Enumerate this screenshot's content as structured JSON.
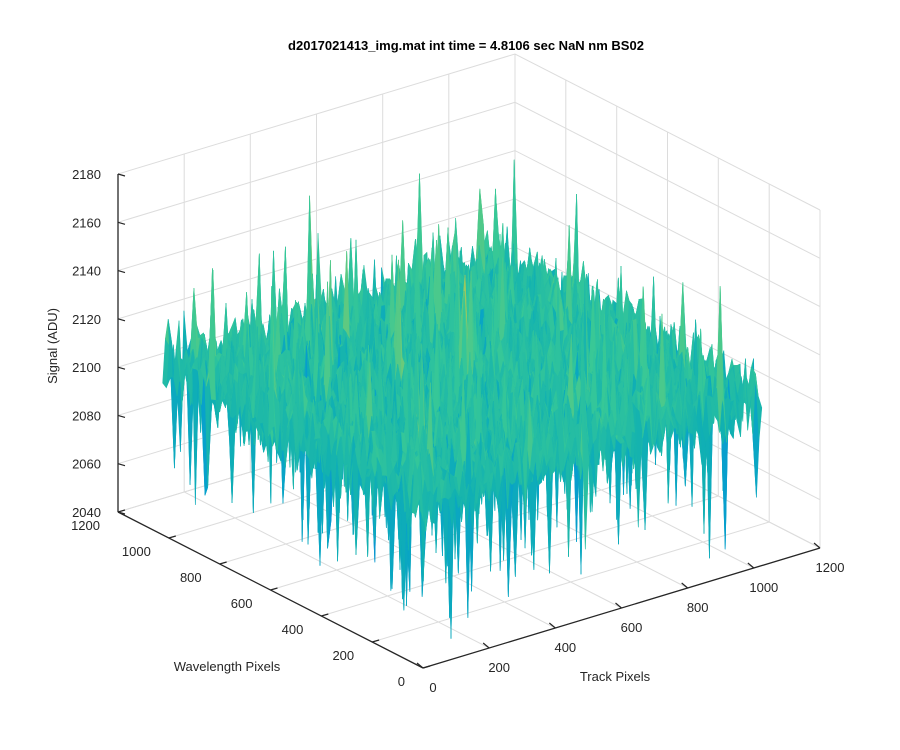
{
  "chart_data": {
    "type": "surface",
    "title": "d2017021413_img.mat int time = 4.8106 sec  NaN nm BS02",
    "xlabel": "Track Pixels",
    "ylabel": "Wavelength Pixels",
    "zlabel": "Signal (ADU)",
    "xlim": [
      0,
      1200
    ],
    "ylim": [
      0,
      1200
    ],
    "zlim": [
      2040,
      2180
    ],
    "xticks": [
      "0",
      "200",
      "400",
      "600",
      "800",
      "1000",
      "1200"
    ],
    "yticks": [
      "0",
      "200",
      "400",
      "600",
      "800",
      "1000",
      "1200"
    ],
    "zticks": [
      "2040",
      "2060",
      "2080",
      "2100",
      "2120",
      "2140",
      "2160",
      "2180"
    ],
    "x_extent": [
      0,
      1024
    ],
    "y_extent": [
      0,
      1024
    ],
    "signal_mean": 2110,
    "signal_range": [
      2045,
      2172
    ],
    "grid": true,
    "colormap": "parula"
  }
}
